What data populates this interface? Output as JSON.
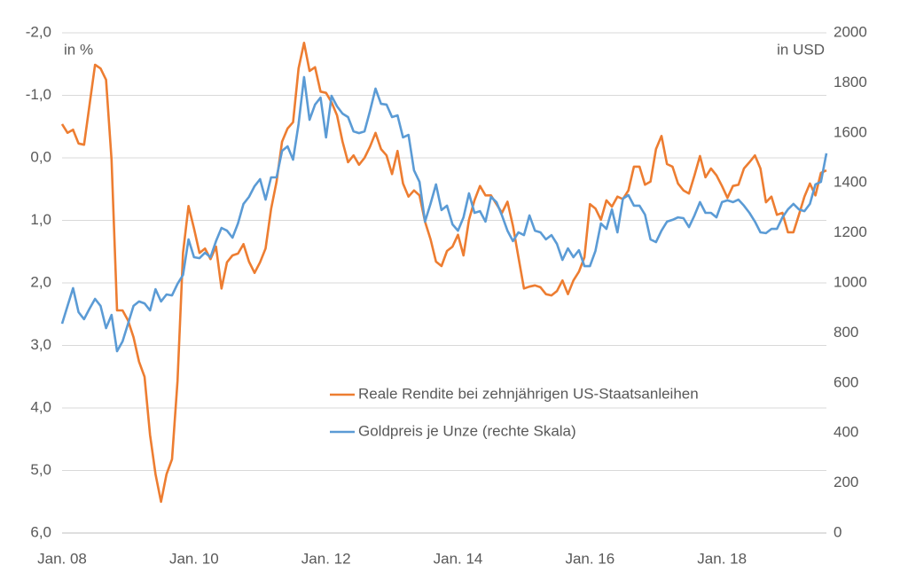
{
  "chart_data": {
    "type": "line",
    "y_label": "in %",
    "y2_label": "in USD",
    "categories": [
      "Jan. 08",
      null,
      null,
      null,
      null,
      null,
      null,
      null,
      null,
      null,
      null,
      null,
      null,
      null,
      null,
      null,
      null,
      null,
      null,
      null,
      null,
      null,
      null,
      null,
      "Jan. 10",
      null,
      null,
      null,
      null,
      null,
      null,
      null,
      null,
      null,
      null,
      null,
      null,
      null,
      null,
      null,
      null,
      null,
      null,
      null,
      null,
      null,
      null,
      null,
      "Jan. 12",
      null,
      null,
      null,
      null,
      null,
      null,
      null,
      null,
      null,
      null,
      null,
      null,
      null,
      null,
      null,
      null,
      null,
      null,
      null,
      null,
      null,
      null,
      null,
      "Jan. 14",
      null,
      null,
      null,
      null,
      null,
      null,
      null,
      null,
      null,
      null,
      null,
      null,
      null,
      null,
      null,
      null,
      null,
      null,
      null,
      null,
      null,
      null,
      null,
      "Jan. 16",
      null,
      null,
      null,
      null,
      null,
      null,
      null,
      null,
      null,
      null,
      null,
      null,
      null,
      null,
      null,
      null,
      null,
      null,
      null,
      null,
      null,
      null,
      null,
      "Jan. 18",
      null,
      null,
      null,
      null,
      null,
      null,
      null,
      null,
      null,
      null,
      null,
      null,
      null,
      null,
      null,
      null,
      null,
      null,
      null
    ],
    "series": [
      {
        "name": "Reale Rendite bei zehnjährigen US-Staatsanleihen",
        "color": "#ED7D31",
        "axis": "y",
        "values": [
          -0.54,
          -0.4,
          -0.45,
          -0.23,
          -0.21,
          -0.85,
          -1.49,
          -1.43,
          -1.25,
          0.03,
          2.44,
          2.44,
          2.6,
          2.87,
          3.26,
          3.5,
          4.43,
          5.06,
          5.5,
          5.06,
          4.82,
          3.57,
          1.52,
          0.77,
          1.13,
          1.52,
          1.45,
          1.62,
          1.42,
          2.09,
          1.67,
          1.56,
          1.53,
          1.38,
          1.66,
          1.84,
          1.67,
          1.45,
          0.82,
          0.38,
          -0.26,
          -0.47,
          -0.57,
          -1.43,
          -1.84,
          -1.39,
          -1.45,
          -1.06,
          -1.04,
          -0.89,
          -0.68,
          -0.26,
          0.07,
          -0.04,
          0.11,
          0.0,
          -0.18,
          -0.4,
          -0.14,
          -0.04,
          0.26,
          -0.11,
          0.41,
          0.62,
          0.52,
          0.6,
          1.02,
          1.3,
          1.66,
          1.73,
          1.49,
          1.42,
          1.23,
          1.56,
          0.99,
          0.68,
          0.45,
          0.6,
          0.6,
          0.74,
          0.88,
          0.7,
          1.09,
          1.59,
          2.09,
          2.06,
          2.04,
          2.07,
          2.18,
          2.2,
          2.13,
          1.96,
          2.18,
          1.96,
          1.82,
          1.59,
          0.74,
          0.81,
          0.99,
          0.68,
          0.78,
          0.62,
          0.66,
          0.52,
          0.14,
          0.14,
          0.43,
          0.38,
          -0.14,
          -0.35,
          0.1,
          0.14,
          0.41,
          0.52,
          0.57,
          0.28,
          -0.03,
          0.31,
          0.17,
          0.28,
          0.45,
          0.64,
          0.45,
          0.43,
          0.17,
          0.07,
          -0.04,
          0.17,
          0.71,
          0.62,
          0.91,
          0.88,
          1.19,
          1.19,
          0.91,
          0.62,
          0.41,
          0.6,
          0.24,
          0.2
        ]
      },
      {
        "name": "Goldpreis je Unze (rechte Skala)",
        "color": "#5B9BD5",
        "axis": "y2",
        "values": [
          837,
          908,
          979,
          883,
          855,
          897,
          936,
          908,
          819,
          872,
          727,
          766,
          837,
          908,
          926,
          918,
          890,
          975,
          926,
          954,
          950,
          996,
          1032,
          1174,
          1103,
          1099,
          1121,
          1103,
          1167,
          1220,
          1209,
          1181,
          1238,
          1316,
          1344,
          1387,
          1415,
          1333,
          1422,
          1422,
          1528,
          1546,
          1493,
          1635,
          1823,
          1652,
          1713,
          1741,
          1582,
          1748,
          1706,
          1677,
          1663,
          1606,
          1599,
          1606,
          1688,
          1777,
          1716,
          1713,
          1663,
          1670,
          1582,
          1592,
          1450,
          1404,
          1245,
          1316,
          1394,
          1291,
          1309,
          1234,
          1209,
          1262,
          1358,
          1280,
          1287,
          1245,
          1344,
          1323,
          1270,
          1209,
          1167,
          1202,
          1191,
          1270,
          1209,
          1202,
          1174,
          1191,
          1156,
          1092,
          1138,
          1103,
          1131,
          1067,
          1067,
          1128,
          1238,
          1216,
          1294,
          1202,
          1337,
          1351,
          1309,
          1309,
          1273,
          1174,
          1163,
          1209,
          1245,
          1252,
          1262,
          1259,
          1223,
          1270,
          1323,
          1280,
          1280,
          1262,
          1323,
          1330,
          1323,
          1333,
          1309,
          1280,
          1245,
          1202,
          1199,
          1216,
          1216,
          1262,
          1294,
          1316,
          1294,
          1287,
          1316,
          1394,
          1404,
          1518
        ]
      }
    ],
    "ylim": [
      6,
      -2
    ],
    "yticks": [
      {
        "value": -2,
        "label": "-2,0"
      },
      {
        "value": -1,
        "label": "-1,0"
      },
      {
        "value": 0,
        "label": "0,0"
      },
      {
        "value": 1,
        "label": "1,0"
      },
      {
        "value": 2,
        "label": "2,0"
      },
      {
        "value": 3,
        "label": "3,0"
      },
      {
        "value": 4,
        "label": "4,0"
      },
      {
        "value": 5,
        "label": "5,0"
      },
      {
        "value": 6,
        "label": "6,0"
      }
    ],
    "y2lim": [
      0,
      2000
    ],
    "y2ticks": [
      0,
      200,
      400,
      600,
      800,
      1000,
      1200,
      1400,
      1600,
      1800,
      2000
    ],
    "grid": true
  }
}
